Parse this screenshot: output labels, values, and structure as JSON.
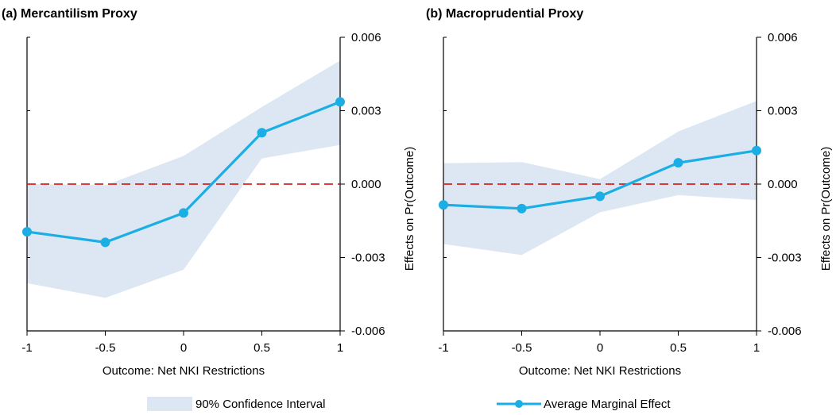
{
  "colors": {
    "band": "#dce7f3",
    "line": "#1aaee5",
    "zero_line": "#d62020",
    "axis": "#000000"
  },
  "legend": {
    "ci_label": "90% Confidence Interval",
    "ame_label": "Average Marginal Effect"
  },
  "chart_data": [
    {
      "type": "line",
      "title": "(a) Mercantilism Proxy",
      "xlabel": "Outcome: Net NKI Restrictions",
      "ylabel": "Effects on Pr(Outcome)",
      "x": [
        -1,
        -0.5,
        0,
        0.5,
        1
      ],
      "x_ticks": [
        "-1",
        "-0.5",
        "0",
        "0.5",
        "1"
      ],
      "y_ticks": [
        "0.006",
        "0.003",
        "0.000",
        "-0.003",
        "-0.006"
      ],
      "y_tick_values": [
        0.006,
        0.003,
        0.0,
        -0.003,
        -0.006
      ],
      "xlim": [
        -1,
        1
      ],
      "ylim": [
        -0.006,
        0.006
      ],
      "reference_line_y": 0.0,
      "series": [
        {
          "name": "Average Marginal Effect",
          "values": [
            -0.00195,
            -0.00238,
            -0.00118,
            0.0021,
            0.00336
          ]
        }
      ],
      "ci_lower": [
        -0.00405,
        -0.00465,
        -0.0035,
        0.00105,
        0.0016
      ],
      "ci_upper": [
        0.0,
        -5e-05,
        0.00115,
        0.00315,
        0.00505
      ],
      "grid": false,
      "y_axis_position": "right"
    },
    {
      "type": "line",
      "title": "(b) Macroprudential Proxy",
      "xlabel": "Outcome: Net NKI Restrictions",
      "ylabel": "Effects on Pr(Outcome)",
      "x": [
        -1,
        -0.5,
        0,
        0.5,
        1
      ],
      "x_ticks": [
        "-1",
        "-0.5",
        "0",
        "0.5",
        "1"
      ],
      "y_ticks": [
        "0.006",
        "0.003",
        "0.000",
        "-0.003",
        "-0.006"
      ],
      "y_tick_values": [
        0.006,
        0.003,
        0.0,
        -0.003,
        -0.006
      ],
      "xlim": [
        -1,
        1
      ],
      "ylim": [
        -0.006,
        0.006
      ],
      "reference_line_y": 0.0,
      "series": [
        {
          "name": "Average Marginal Effect",
          "values": [
            -0.00085,
            -0.001,
            -0.0005,
            0.00087,
            0.00137
          ]
        }
      ],
      "ci_lower": [
        -0.00245,
        -0.0029,
        -0.00115,
        -0.00045,
        -0.00065
      ],
      "ci_upper": [
        0.00085,
        0.0009,
        0.0002,
        0.00215,
        0.0034
      ],
      "grid": false,
      "y_axis_position": "right"
    }
  ]
}
